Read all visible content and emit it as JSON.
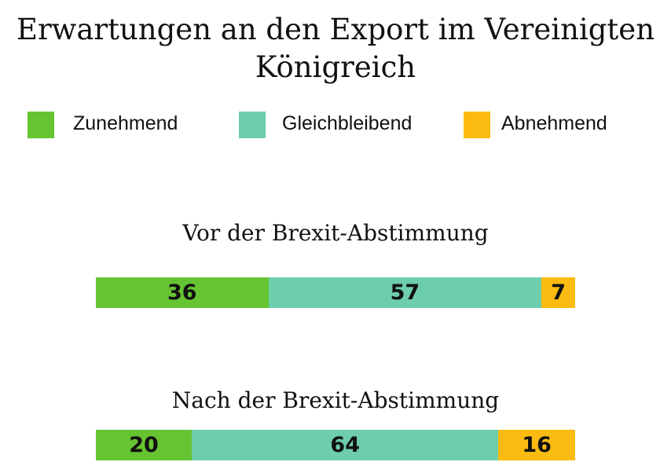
{
  "chart_data": {
    "type": "bar",
    "title": "Erwartungen an den Export im Vereinigten Königreich",
    "categories": [
      "Vor der Brexit-Abstimmung",
      "Nach der Brexit-Abstimmung"
    ],
    "series": [
      {
        "name": "Zunehmend",
        "values": [
          36,
          20
        ],
        "color": "#66c432"
      },
      {
        "name": "Gleichbleibend",
        "values": [
          57,
          64
        ],
        "color": "#6dcdad"
      },
      {
        "name": "Abnehmend",
        "values": [
          7,
          16
        ],
        "color": "#fbbb10"
      }
    ],
    "stacked": true,
    "orientation": "horizontal",
    "xlim": [
      0,
      100
    ],
    "legend_position": "top"
  }
}
